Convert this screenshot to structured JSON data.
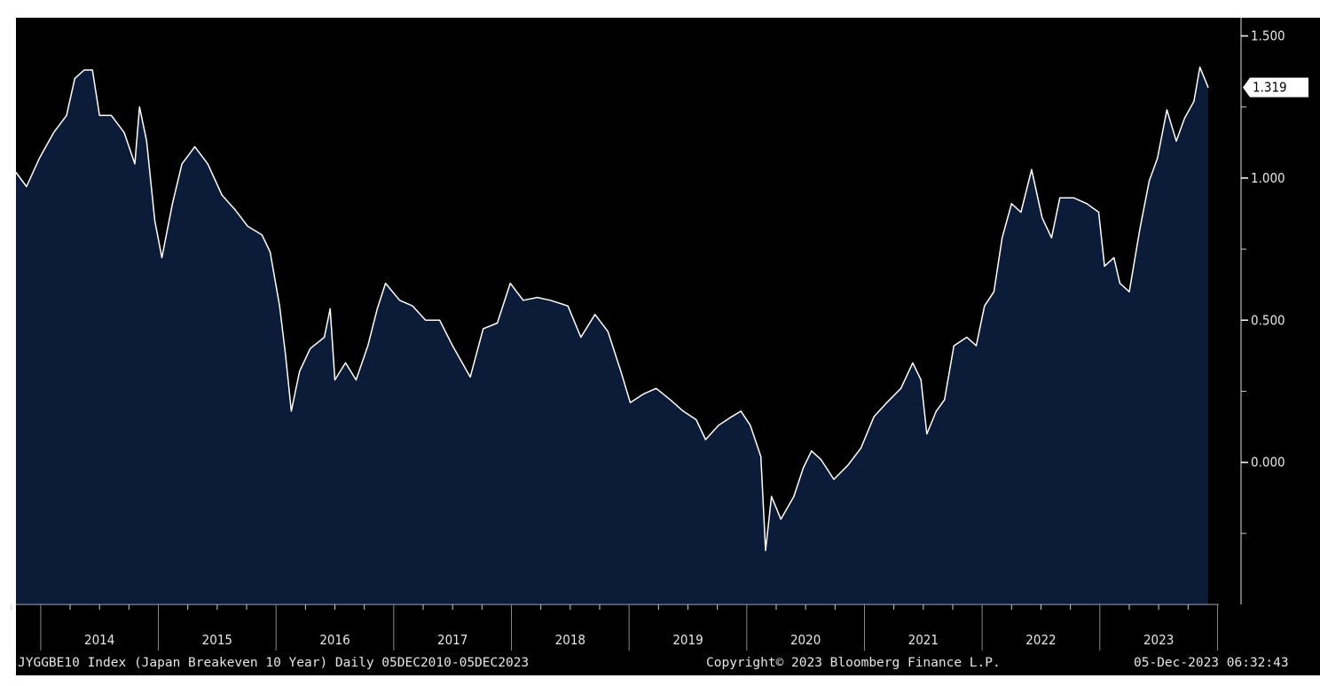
{
  "chart_data": {
    "type": "area",
    "title": "JYGGBE10 Index (Japan Breakeven 10 Year)",
    "series": [
      {
        "name": "JYGGBE10 Index",
        "x": [
          2013.79,
          2013.88,
          2013.99,
          2014.11,
          2014.22,
          2014.29,
          2014.37,
          2014.44,
          2014.5,
          2014.6,
          2014.71,
          2014.8,
          2014.84,
          2014.9,
          2014.97,
          2015.03,
          2015.12,
          2015.2,
          2015.31,
          2015.42,
          2015.54,
          2015.65,
          2015.76,
          2015.88,
          2015.95,
          2016.03,
          2016.08,
          2016.13,
          2016.2,
          2016.29,
          2016.41,
          2016.46,
          2016.5,
          2016.59,
          2016.68,
          2016.78,
          2016.86,
          2016.93,
          2017.05,
          2017.16,
          2017.27,
          2017.39,
          2017.5,
          2017.65,
          2017.76,
          2017.88,
          2017.99,
          2018.1,
          2018.22,
          2018.33,
          2018.48,
          2018.59,
          2018.71,
          2018.82,
          2018.93,
          2019.01,
          2019.12,
          2019.23,
          2019.35,
          2019.46,
          2019.57,
          2019.65,
          2019.76,
          2019.87,
          2019.95,
          2020.03,
          2020.12,
          2020.16,
          2020.21,
          2020.29,
          2020.4,
          2020.48,
          2020.55,
          2020.63,
          2020.74,
          2020.86,
          2020.97,
          2021.08,
          2021.19,
          2021.31,
          2021.41,
          2021.48,
          2021.53,
          2021.61,
          2021.68,
          2021.76,
          2021.87,
          2021.95,
          2022.02,
          2022.1,
          2022.17,
          2022.25,
          2022.33,
          2022.42,
          2022.51,
          2022.59,
          2022.66,
          2022.78,
          2022.89,
          2022.99,
          2023.04,
          2023.12,
          2023.17,
          2023.25,
          2023.34,
          2023.42,
          2023.49,
          2023.57,
          2023.65,
          2023.72,
          2023.8,
          2023.85,
          2023.89,
          2023.92
        ],
        "values": [
          1.02,
          0.97,
          1.07,
          1.16,
          1.22,
          1.35,
          1.38,
          1.38,
          1.22,
          1.22,
          1.16,
          1.05,
          1.25,
          1.13,
          0.85,
          0.72,
          0.91,
          1.05,
          1.11,
          1.05,
          0.94,
          0.89,
          0.83,
          0.8,
          0.74,
          0.55,
          0.38,
          0.18,
          0.32,
          0.4,
          0.44,
          0.54,
          0.29,
          0.35,
          0.29,
          0.41,
          0.54,
          0.63,
          0.57,
          0.55,
          0.5,
          0.5,
          0.41,
          0.3,
          0.47,
          0.49,
          0.63,
          0.57,
          0.58,
          0.57,
          0.55,
          0.44,
          0.52,
          0.46,
          0.32,
          0.21,
          0.24,
          0.26,
          0.22,
          0.18,
          0.15,
          0.08,
          0.13,
          0.16,
          0.18,
          0.13,
          0.02,
          -0.31,
          -0.12,
          -0.2,
          -0.12,
          -0.02,
          0.04,
          0.01,
          -0.06,
          -0.01,
          0.05,
          0.16,
          0.21,
          0.26,
          0.35,
          0.29,
          0.1,
          0.18,
          0.22,
          0.41,
          0.44,
          0.41,
          0.55,
          0.6,
          0.79,
          0.91,
          0.88,
          1.03,
          0.86,
          0.79,
          0.93,
          0.93,
          0.91,
          0.88,
          0.69,
          0.72,
          0.63,
          0.6,
          0.82,
          0.99,
          1.07,
          1.24,
          1.13,
          1.21,
          1.27,
          1.39,
          1.35,
          1.319
        ]
      }
    ],
    "xlim": [
      2013.79,
      2024.2
    ],
    "ylim": [
      -0.5,
      1.564
    ],
    "x_ticks": [
      "2014",
      "2015",
      "2016",
      "2017",
      "2018",
      "2019",
      "2020",
      "2021",
      "2022",
      "2023"
    ],
    "y_ticks": [
      "1.500",
      "1.000",
      "0.500",
      "0.000"
    ],
    "y_tick_values": [
      1.5,
      1.0,
      0.5,
      0.0
    ],
    "last_value_label": "1.319",
    "last_value": 1.319,
    "grid": false,
    "y_axis_side": "right",
    "colors": {
      "background": "#000000",
      "fill": "#0c1b38",
      "line": "#ffffff",
      "text": "#e6e6e6"
    }
  },
  "footer": {
    "left": "JYGGBE10 Index (Japan Breakeven 10 Year)  Daily 05DEC2010-05DEC2023",
    "center": "Copyright© 2023 Bloomberg Finance L.P.",
    "right": "05-Dec-2023 06:32:43"
  }
}
